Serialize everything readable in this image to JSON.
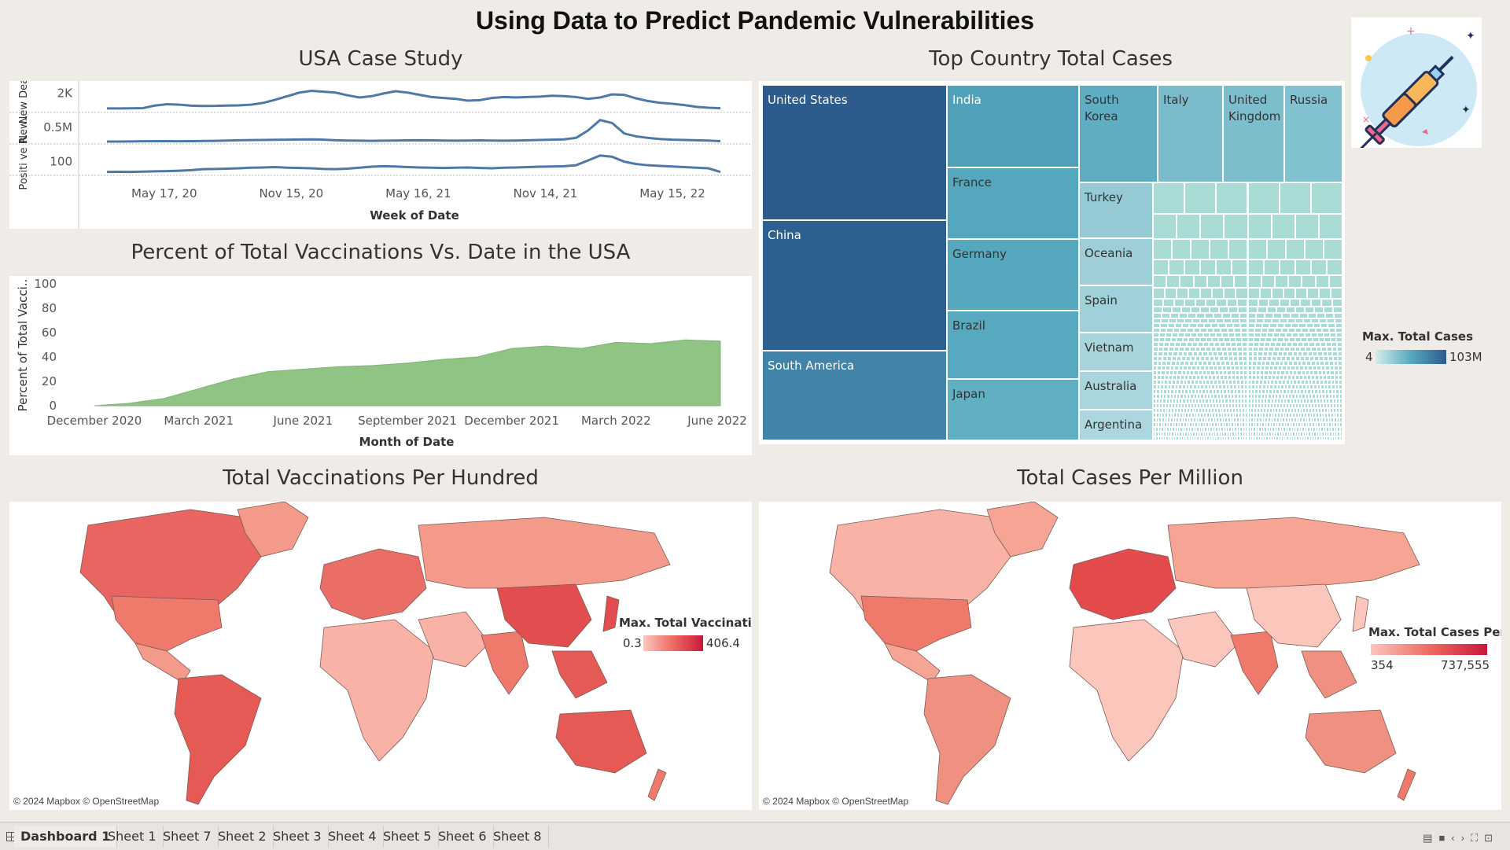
{
  "dashboard": {
    "title": "Using Data to Predict Pandemic Vulnerabilities"
  },
  "usa_case_study": {
    "title": "USA Case Study"
  },
  "vacc_chart": {
    "title": "Percent of Total Vaccinations Vs. Date in the USA"
  },
  "treemap": {
    "title": "Top Country Total Cases",
    "legend_title": "Max. Total Cases",
    "legend_min": "4",
    "legend_max": "103M"
  },
  "map_vacc": {
    "title": "Total Vaccinations Per Hundred",
    "legend_title": "Max. Total Vaccinati..",
    "legend_min": "0.3",
    "legend_max": "406.4",
    "credit": "© 2024 Mapbox © OpenStreetMap",
    "color_low": "#fcc5bc",
    "color_high": "#c9183a"
  },
  "map_cases": {
    "title": "Total Cases Per Million",
    "legend_title": "Max. Total Cases Per..",
    "legend_min": "354",
    "legend_max": "737,555",
    "credit": "© 2024 Mapbox © OpenStreetMap",
    "color_low": "#fcc5bc",
    "color_high": "#c9183a"
  },
  "tabs": {
    "items": [
      "Dashboard 1",
      "Sheet 1",
      "Sheet 7",
      "Sheet 2",
      "Sheet 3",
      "Sheet 4",
      "Sheet 5",
      "Sheet 6",
      "Sheet 8"
    ],
    "active": 0
  },
  "icons": {
    "logo": "syringe-icon",
    "grid": "grid-icon"
  },
  "chart_data": [
    {
      "type": "line",
      "name": "usa-case-study",
      "xlabel": "Week of Date",
      "x_ticks": [
        "May 17, 20",
        "Nov 15, 20",
        "May 16, 21",
        "Nov 14, 21",
        "May 15, 22"
      ],
      "x_tick_positions": [
        0.08,
        0.3,
        0.52,
        0.74,
        0.96
      ],
      "rows": [
        {
          "label": "New Dea..",
          "y_tick": "2K",
          "y_tick_value": 2000,
          "ylim": [
            0,
            3000
          ],
          "values": [
            280,
            280,
            290,
            310,
            600,
            750,
            700,
            580,
            550,
            560,
            600,
            620,
            700,
            900,
            1250,
            1650,
            2050,
            2250,
            2150,
            2050,
            1750,
            1500,
            1650,
            1950,
            2200,
            2050,
            1800,
            1550,
            1450,
            1350,
            1150,
            1200,
            1450,
            1550,
            1500,
            1550,
            1600,
            1700,
            1650,
            1550,
            1350,
            1500,
            1850,
            1800,
            1400,
            1100,
            900,
            800,
            650,
            450,
            350,
            300
          ]
        },
        {
          "label": "New..",
          "y_tick": "0.5M",
          "y_tick_value": 500000,
          "ylim": [
            0,
            900000
          ],
          "values": [
            25000,
            25000,
            30000,
            35000,
            40000,
            40000,
            38000,
            40000,
            45000,
            50000,
            60000,
            70000,
            75000,
            80000,
            85000,
            90000,
            95000,
            100000,
            90000,
            70000,
            60000,
            55000,
            50000,
            55000,
            60000,
            65000,
            70000,
            65000,
            60000,
            55000,
            60000,
            65000,
            60000,
            55000,
            60000,
            70000,
            80000,
            90000,
            100000,
            150000,
            400000,
            750000,
            650000,
            300000,
            200000,
            150000,
            110000,
            90000,
            80000,
            70000,
            60000,
            40000
          ]
        },
        {
          "label": "Positi ve R..",
          "y_tick": "100",
          "y_tick_value": 100,
          "ylim": [
            0,
            220
          ],
          "values": [
            15,
            16,
            15,
            18,
            20,
            22,
            25,
            30,
            38,
            40,
            42,
            45,
            50,
            52,
            55,
            50,
            48,
            45,
            40,
            38,
            42,
            50,
            58,
            62,
            60,
            55,
            52,
            50,
            48,
            50,
            52,
            48,
            45,
            50,
            52,
            55,
            58,
            60,
            62,
            70,
            110,
            150,
            140,
            100,
            80,
            70,
            65,
            60,
            55,
            50,
            45,
            15
          ]
        }
      ]
    },
    {
      "type": "area",
      "name": "vaccinations-usa",
      "title": "Percent of Total Vaccinations Vs. Date in the USA",
      "xlabel": "Month of Date",
      "ylabel": "Percent of Total Vacci..",
      "ylim": [
        0,
        100
      ],
      "y_ticks": [
        0,
        20,
        40,
        60,
        80,
        100
      ],
      "x_ticks": [
        "December 2020",
        "March 2021",
        "June 2021",
        "September 2021",
        "December 2021",
        "March 2022",
        "June 2022"
      ],
      "x_tick_months": [
        0,
        3,
        6,
        9,
        12,
        15,
        18
      ],
      "months": [
        0,
        1,
        2,
        3,
        4,
        5,
        6,
        7,
        8,
        9,
        10,
        11,
        12,
        13,
        14,
        15,
        16,
        17,
        18
      ],
      "values": [
        0,
        2,
        6,
        14,
        22,
        28,
        30,
        32,
        33,
        35,
        38,
        40,
        47,
        49,
        47,
        52,
        51,
        54,
        53
      ]
    },
    {
      "type": "treemap",
      "name": "top-country-total-cases",
      "series": [
        {
          "name": "United States",
          "value": 103000000
        },
        {
          "name": "China",
          "value": 99000000
        },
        {
          "name": "South America",
          "value": 68000000
        },
        {
          "name": "India",
          "value": 44700000
        },
        {
          "name": "France",
          "value": 39000000
        },
        {
          "name": "Germany",
          "value": 38400000
        },
        {
          "name": "Brazil",
          "value": 37000000
        },
        {
          "name": "Japan",
          "value": 33800000
        },
        {
          "name": "South Korea",
          "value": 34500000
        },
        {
          "name": "Italy",
          "value": 25700000
        },
        {
          "name": "United Kingdom",
          "value": 24700000
        },
        {
          "name": "Russia",
          "value": 23000000
        },
        {
          "name": "Turkey",
          "value": 17000000
        },
        {
          "name": "Oceania",
          "value": 14500000
        },
        {
          "name": "Spain",
          "value": 13900000
        },
        {
          "name": "Vietnam",
          "value": 11600000
        },
        {
          "name": "Australia",
          "value": 11400000
        },
        {
          "name": "Argentina",
          "value": 10000000
        }
      ]
    }
  ]
}
